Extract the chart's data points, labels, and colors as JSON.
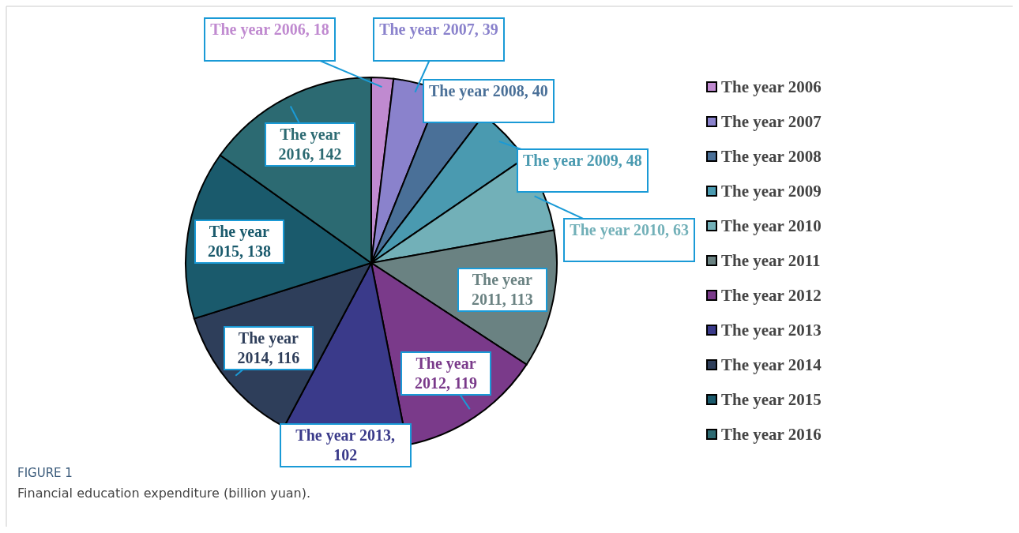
{
  "chart_data": {
    "type": "pie",
    "title": "FIGURE 1",
    "subtitle": "Financial education expenditure (billion yuan).",
    "categories": [
      "The year 2006",
      "The year 2007",
      "The year 2008",
      "The year 2009",
      "The year 2010",
      "The year 2011",
      "The year 2012",
      "The year 2013",
      "The year 2014",
      "The year 2015",
      "The year 2016"
    ],
    "values": [
      18,
      39,
      40,
      48,
      63,
      113,
      119,
      102,
      116,
      138,
      142
    ],
    "colors": [
      "#c08ad0",
      "#8a82cc",
      "#4a7098",
      "#4a9ab0",
      "#72b0b8",
      "#6a8282",
      "#7a3a8a",
      "#3a3a8a",
      "#2e3e5a",
      "#1a5a6c",
      "#2c6a72"
    ],
    "value_labels": [
      "The year 2006, 18",
      "The year 2007, 39",
      "The year 2008, 40",
      "The year 2009, 48",
      "The year 2010, 63",
      "The year 2011, 113",
      "The year 2012, 119",
      "The year 2013, 102",
      "The year 2014, 116",
      "The year 2015, 138",
      "The year 2016, 142"
    ],
    "legend": "right"
  }
}
